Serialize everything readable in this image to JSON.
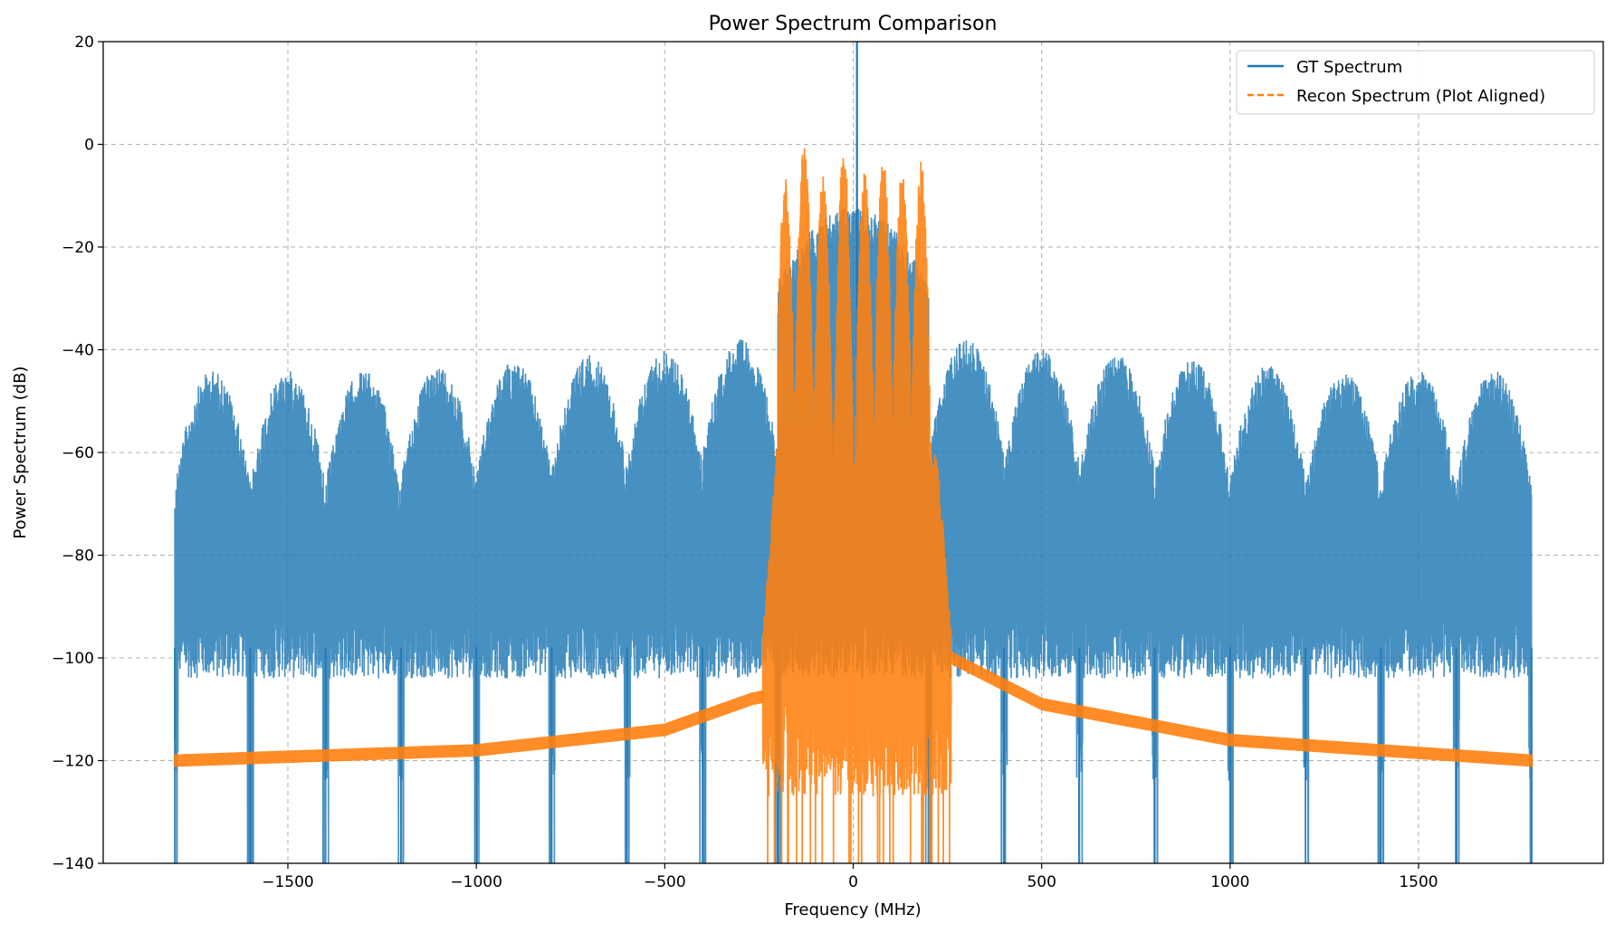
{
  "chart_data": {
    "type": "line",
    "title": "Power Spectrum Comparison",
    "xlabel": "Frequency (MHz)",
    "ylabel": "Power Spectrum (dB)",
    "xlim": [
      -1990,
      1990
    ],
    "ylim": [
      -140,
      20
    ],
    "xticks": [
      -1500,
      -1000,
      -500,
      0,
      500,
      1000,
      1500
    ],
    "yticks": [
      20,
      0,
      -20,
      -40,
      -60,
      -80,
      -100,
      -120,
      -140
    ],
    "grid": true,
    "legend_position": "top-right",
    "series": [
      {
        "name": "GT Spectrum",
        "color": "#1f77b4",
        "style": "solid",
        "x_range": [
          -1800,
          1800
        ],
        "peak_x": 10,
        "peak_y": 20,
        "main_lobe_top": -12,
        "lobe_spacing": 200,
        "sidelobe_tops": [
          -44,
          -44,
          -44,
          -43,
          -42,
          -41,
          -40,
          -38,
          -37,
          -35,
          -33,
          -31,
          -30
        ],
        "floor_y": -98,
        "null_y": -140
      },
      {
        "name": "Recon Spectrum (Plot Aligned)",
        "color": "#ff7f0e",
        "style": "dashed",
        "x_range": [
          -1800,
          1800
        ],
        "band_x": [
          -240,
          260
        ],
        "peaks": [
          [
            -180,
            -5
          ],
          [
            -130,
            0
          ],
          [
            -80,
            -5
          ],
          [
            -25,
            -1
          ],
          [
            30,
            -5
          ],
          [
            80,
            -3
          ],
          [
            130,
            -4
          ],
          [
            180,
            -3
          ]
        ],
        "outer_floor": [
          [
            -1800,
            -120
          ],
          [
            -1000,
            -118
          ],
          [
            -500,
            -114
          ],
          [
            -270,
            -108
          ],
          [
            260,
            -100
          ],
          [
            500,
            -109
          ],
          [
            1000,
            -116
          ],
          [
            1800,
            -120
          ]
        ]
      }
    ]
  }
}
